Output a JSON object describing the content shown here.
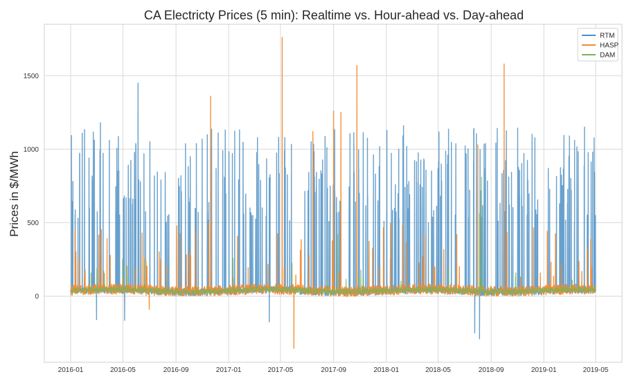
{
  "chart_data": {
    "type": "line",
    "title": "CA Electricty Prices (5 min):  Realtime vs. Hour-ahead vs. Day-ahead",
    "xlabel": "",
    "ylabel": "Prices in $/MWh",
    "x_ticks": [
      "2016-01",
      "2016-05",
      "2016-09",
      "2017-01",
      "2017-05",
      "2017-09",
      "2018-01",
      "2018-05",
      "2018-09",
      "2019-01",
      "2019-05"
    ],
    "y_ticks": [
      0,
      500,
      1000,
      1500
    ],
    "xlim": [
      "2015-11-01",
      "2019-07-01"
    ],
    "ylim": [
      -450,
      1850
    ],
    "grid": true,
    "legend_position": "top-right",
    "x_start": "2016-01-01",
    "x_end": "2019-05-01",
    "series": [
      {
        "name": "RTM",
        "color": "#4c8fc4",
        "baseline": 35,
        "noise": 25,
        "spike_count": 300,
        "spike_range": [
          500,
          1150
        ],
        "extreme_spikes": [
          {
            "date": "2016-06-05",
            "value": 1450
          },
          {
            "date": "2016-03-10",
            "value": 1180
          },
          {
            "date": "2018-02-10",
            "value": 1160
          },
          {
            "date": "2019-04-05",
            "value": 1150
          }
        ],
        "negative_spikes": [
          {
            "date": "2016-03-01",
            "value": -160
          },
          {
            "date": "2016-05-05",
            "value": -165
          },
          {
            "date": "2017-04-05",
            "value": -175
          },
          {
            "date": "2018-07-25",
            "value": -250
          },
          {
            "date": "2018-08-05",
            "value": -290
          }
        ]
      },
      {
        "name": "HASP",
        "color": "#f28a2e",
        "baseline": 40,
        "noise": 35,
        "spike_count": 70,
        "spike_range": [
          120,
          500
        ],
        "extreme_spikes": [
          {
            "date": "2017-05-05",
            "value": 1760
          },
          {
            "date": "2017-10-25",
            "value": 1570
          },
          {
            "date": "2018-10-01",
            "value": 1580
          },
          {
            "date": "2016-11-20",
            "value": 1360
          },
          {
            "date": "2017-09-01",
            "value": 1260
          },
          {
            "date": "2017-09-18",
            "value": 1250
          },
          {
            "date": "2017-07-15",
            "value": 1120
          },
          {
            "date": "2018-08-01",
            "value": 1030
          }
        ],
        "negative_spikes": [
          {
            "date": "2017-06-01",
            "value": -355
          },
          {
            "date": "2016-07-01",
            "value": -90
          }
        ]
      },
      {
        "name": "DAM",
        "color": "#77b45a",
        "baseline": 38,
        "noise": 18,
        "spike_count": 20,
        "spike_range": [
          100,
          260
        ],
        "extreme_spikes": [
          {
            "date": "2018-08-10",
            "value": 810
          },
          {
            "date": "2018-08-05",
            "value": 560
          },
          {
            "date": "2017-09-10",
            "value": 420
          }
        ],
        "negative_spikes": []
      }
    ]
  }
}
